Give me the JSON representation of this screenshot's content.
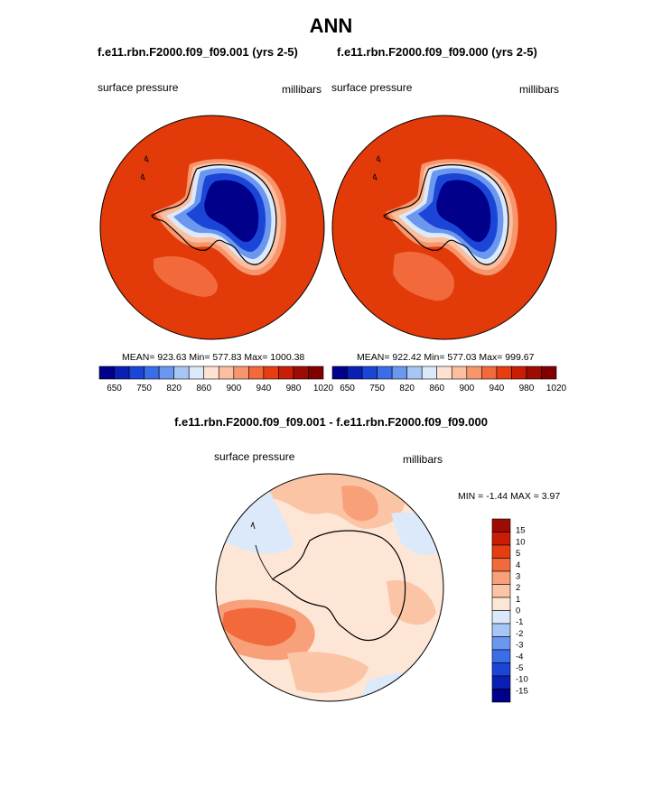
{
  "header": {
    "season": "ANN",
    "left_case": "f.e11.rbn.F2000.f09_f09.001 (yrs 2-5)",
    "right_case": "f.e11.rbn.F2000.f09_f09.000 (yrs 2-5)",
    "diff_case": "f.e11.rbn.F2000.f09_f09.001 - f.e11.rbn.F2000.f09_f09.000"
  },
  "panels": {
    "left": {
      "variable": "surface pressure",
      "units": "millibars",
      "stats": "MEAN= 923.63  Min= 577.83  Max= 1000.38"
    },
    "right": {
      "variable": "surface pressure",
      "units": "millibars",
      "stats": "MEAN= 922.42  Min= 577.03  Max= 999.67"
    },
    "diff": {
      "variable": "surface pressure",
      "units": "millibars",
      "stats": "MIN =  -1.44 MAX =   3.97"
    }
  },
  "colors": {
    "abs_scale": [
      "#00008a",
      "#0a1fb3",
      "#1a45d6",
      "#3a6ee8",
      "#6c97ef",
      "#a8c6f5",
      "#dce9fb",
      "#fde2d2",
      "#fbbf9f",
      "#f7966d",
      "#f26a3c",
      "#e63e12",
      "#c91d05",
      "#9d0c02",
      "#800000"
    ],
    "diff_scale": [
      "#00008a",
      "#0a1fb3",
      "#1a45d6",
      "#3a6ee8",
      "#6c97ef",
      "#a8c6f5",
      "#dce9fb",
      "#fde6d6",
      "#fbc5a5",
      "#f7a07a",
      "#f26a3c",
      "#e63e12",
      "#c91d05",
      "#9d0c02"
    ],
    "ocean_abs": "#e23a09",
    "diff_ocean": "#fcd2b5"
  },
  "chart_data": [
    {
      "type": "heatmap",
      "title": "f.e11.rbn.F2000.f09_f09.001 (yrs 2-5)",
      "variable": "surface pressure",
      "units": "millibars",
      "projection": "south polar stereographic",
      "mean": 923.63,
      "min": 577.83,
      "max": 1000.38,
      "colorbar_levels": [
        650,
        700,
        750,
        780,
        820,
        840,
        860,
        880,
        900,
        920,
        940,
        960,
        980,
        1000,
        1020
      ],
      "colorbar_tick_labels": [
        "650",
        "750",
        "820",
        "860",
        "900",
        "940",
        "980",
        "1020"
      ]
    },
    {
      "type": "heatmap",
      "title": "f.e11.rbn.F2000.f09_f09.000 (yrs 2-5)",
      "variable": "surface pressure",
      "units": "millibars",
      "projection": "south polar stereographic",
      "mean": 922.42,
      "min": 577.03,
      "max": 999.67,
      "colorbar_levels": [
        650,
        700,
        750,
        780,
        820,
        840,
        860,
        880,
        900,
        920,
        940,
        960,
        980,
        1000,
        1020
      ],
      "colorbar_tick_labels": [
        "650",
        "750",
        "820",
        "860",
        "900",
        "940",
        "980",
        "1020"
      ]
    },
    {
      "type": "heatmap",
      "title": "f.e11.rbn.F2000.f09_f09.001 - f.e11.rbn.F2000.f09_f09.000",
      "variable": "surface pressure",
      "units": "millibars",
      "projection": "south polar stereographic",
      "min": -1.44,
      "max": 3.97,
      "colorbar_levels": [
        -15,
        -10,
        -5,
        -4,
        -3,
        -2,
        -1,
        0,
        1,
        2,
        3,
        4,
        5,
        10,
        15
      ],
      "colorbar_tick_labels": [
        "15",
        "10",
        "5",
        "4",
        "3",
        "2",
        "1",
        "0",
        "-1",
        "-2",
        "-3",
        "-4",
        "-5",
        "-10",
        "-15"
      ]
    }
  ]
}
